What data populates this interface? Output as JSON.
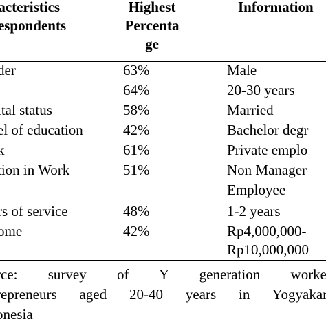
{
  "table": {
    "headers": {
      "characteristics": [
        "racteristics",
        "respondents"
      ],
      "highest": [
        "Highest",
        "Percenta",
        "ge"
      ],
      "information": [
        "Information"
      ]
    },
    "rows": [
      {
        "characteristic": "der",
        "percentage": "63%",
        "information": "Male"
      },
      {
        "characteristic": "",
        "percentage": "64%",
        "information": "20-30 years"
      },
      {
        "characteristic": "ital status",
        "percentage": "58%",
        "information": "Married"
      },
      {
        "characteristic": "el of education",
        "percentage": "42%",
        "information": "Bachelor degr"
      },
      {
        "characteristic": "k",
        "percentage": "61%",
        "information": "Private emplo"
      },
      {
        "characteristic": "tion in Work",
        "percentage": "51%",
        "information": "Non Manager"
      },
      {
        "characteristic": "",
        "percentage": "",
        "information": "Employee"
      },
      {
        "characteristic": "rs of service",
        "percentage": "48%",
        "information": "1-2 years"
      },
      {
        "characteristic": "ome",
        "percentage": "42%",
        "information": "Rp4,000,000-"
      },
      {
        "characteristic": "",
        "percentage": "",
        "information": "Rp10,000,000"
      }
    ]
  },
  "source": {
    "lines": [
      "rce:  survey  of  Y  generation  worker",
      "repreneurs  aged  20-40  years  in  Yogyakart",
      "onesia"
    ]
  }
}
